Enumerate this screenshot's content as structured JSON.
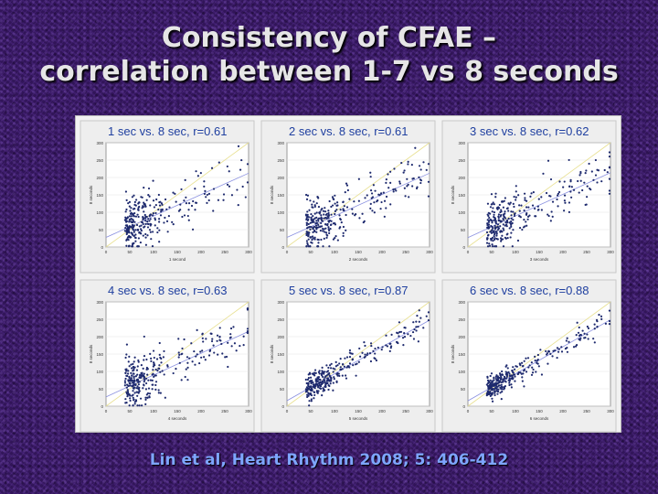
{
  "title_line1": "Consistency of CFAE –",
  "title_line2": "correlation between 1-7 vs 8 seconds",
  "citation": "Lin et al, Heart Rhythm 2008; 5: 406-412",
  "colors": {
    "points": "#1e2a6e",
    "fit_line": "#8a90e0",
    "identity_line": "#e8e090",
    "plot_bg": "#ffffff",
    "frame_bg": "#eeeeee",
    "title_text": "#2040a0"
  },
  "chart_data": [
    {
      "type": "scatter",
      "title": "1 sec vs. 8 sec, r=0.61",
      "xlabel": "1 second",
      "ylabel": "8 seconds",
      "xlim": [
        0,
        300
      ],
      "ylim": [
        0,
        300
      ],
      "xticks": [
        0,
        50,
        100,
        150,
        200,
        250,
        300
      ],
      "yticks": [
        0,
        50,
        100,
        150,
        200,
        250,
        300
      ],
      "r": 0.61,
      "n_points": 300
    },
    {
      "type": "scatter",
      "title": "2 sec vs. 8 sec, r=0.61",
      "xlabel": "2 seconds",
      "ylabel": "8 seconds",
      "xlim": [
        0,
        300
      ],
      "ylim": [
        0,
        300
      ],
      "xticks": [
        0,
        50,
        100,
        150,
        200,
        250,
        300
      ],
      "yticks": [
        0,
        50,
        100,
        150,
        200,
        250,
        300
      ],
      "r": 0.61,
      "n_points": 300
    },
    {
      "type": "scatter",
      "title": "3 sec vs. 8 sec, r=0.62",
      "xlabel": "3 seconds",
      "ylabel": "8 seconds",
      "xlim": [
        0,
        300
      ],
      "ylim": [
        0,
        300
      ],
      "xticks": [
        0,
        50,
        100,
        150,
        200,
        250,
        300
      ],
      "yticks": [
        0,
        50,
        100,
        150,
        200,
        250,
        300
      ],
      "r": 0.62,
      "n_points": 300
    },
    {
      "type": "scatter",
      "title": "4 sec vs. 8 sec, r=0.63",
      "xlabel": "4 seconds",
      "ylabel": "8 seconds",
      "xlim": [
        0,
        300
      ],
      "ylim": [
        0,
        300
      ],
      "xticks": [
        0,
        50,
        100,
        150,
        200,
        250,
        300
      ],
      "yticks": [
        0,
        50,
        100,
        150,
        200,
        250,
        300
      ],
      "r": 0.63,
      "n_points": 300
    },
    {
      "type": "scatter",
      "title": "5 sec vs. 8 sec, r=0.87",
      "xlabel": "5 seconds",
      "ylabel": "8 seconds",
      "xlim": [
        0,
        300
      ],
      "ylim": [
        0,
        300
      ],
      "xticks": [
        0,
        50,
        100,
        150,
        200,
        250,
        300
      ],
      "yticks": [
        0,
        50,
        100,
        150,
        200,
        250,
        300
      ],
      "r": 0.87,
      "n_points": 300
    },
    {
      "type": "scatter",
      "title": "6 sec vs. 8 sec, r=0.88",
      "xlabel": "6 seconds",
      "ylabel": "8 seconds",
      "xlim": [
        0,
        300
      ],
      "ylim": [
        0,
        300
      ],
      "xticks": [
        0,
        50,
        100,
        150,
        200,
        250,
        300
      ],
      "yticks": [
        0,
        50,
        100,
        150,
        200,
        250,
        300
      ],
      "r": 0.88,
      "n_points": 300
    }
  ]
}
